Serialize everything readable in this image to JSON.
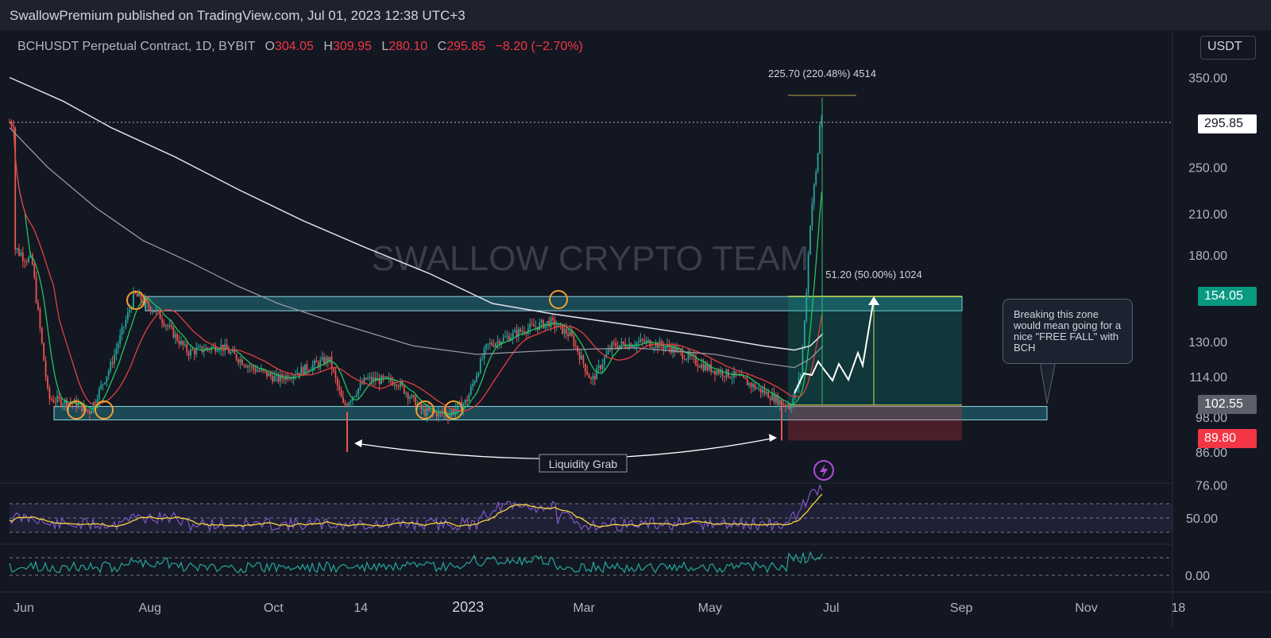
{
  "header": {
    "published": "SwallowPremium published on TradingView.com, Jul 01, 2023 12:38 UTC+3"
  },
  "symbol": {
    "name": "BCHUSDT Perpetual Contract, 1D, BYBIT",
    "o_label": "O",
    "o": "304.05",
    "h_label": "H",
    "h": "309.95",
    "l_label": "L",
    "l": "280.10",
    "c_label": "C",
    "c": "295.85",
    "change": "−8.20 (−2.70%)"
  },
  "currency": "USDT",
  "watermark": "SWALLOW CRYPTO TEAM",
  "annotations": {
    "measure_top": "225.70 (220.48%) 4514",
    "measure_mid": "51.20 (50.00%) 1024",
    "liquidity": "Liquidity Grab",
    "callout": "Breaking this zone would mean going for a nice \"FREE FALL\" with BCH"
  },
  "price_tags": {
    "last": "295.85",
    "target": "154.05",
    "entry": "102.55",
    "stop": "89.80"
  },
  "colors": {
    "background": "#131722",
    "up": "#26a69a",
    "down": "#ef5350",
    "zone": "#2aa6b8",
    "rsi": "#7e57c2",
    "rsi_ma": "#f5d63d",
    "osc": "#26a69a",
    "target_tag": "#089981",
    "stop_tag": "#f23645",
    "entry_tag": "#5d606b"
  },
  "chart_data": {
    "type": "candlestick",
    "scale": "log",
    "x_tick_labels": [
      "Jun",
      "Aug",
      "Oct",
      "14",
      "2023",
      "Mar",
      "May",
      "Jul",
      "Sep",
      "Nov",
      "18"
    ],
    "y_tick_labels": [
      "350.00",
      "250.00",
      "210.00",
      "180.00",
      "130.00",
      "114.00",
      "98.00",
      "86.00",
      "76.00"
    ],
    "y_ticks": [
      350,
      250,
      210,
      180,
      130,
      114,
      98,
      86,
      76
    ],
    "ylim": [
      72,
      400
    ],
    "rsi_tick_labels": [
      "50.00"
    ],
    "osc_tick_labels": [
      "0.00"
    ],
    "price_path": [
      [
        "2022-06-01",
        185
      ],
      [
        "2022-06-10",
        175
      ],
      [
        "2022-06-18",
        105
      ],
      [
        "2022-07-01",
        103
      ],
      [
        "2022-07-08",
        100
      ],
      [
        "2022-07-18",
        118
      ],
      [
        "2022-07-30",
        155
      ],
      [
        "2022-08-10",
        145
      ],
      [
        "2022-08-25",
        125
      ],
      [
        "2022-09-10",
        128
      ],
      [
        "2022-09-25",
        118
      ],
      [
        "2022-10-08",
        113
      ],
      [
        "2022-10-20",
        117
      ],
      [
        "2022-11-02",
        122
      ],
      [
        "2022-11-09",
        102
      ],
      [
        "2022-11-20",
        113
      ],
      [
        "2022-12-05",
        112
      ],
      [
        "2022-12-18",
        100
      ],
      [
        "2022-12-30",
        99
      ],
      [
        "2023-01-08",
        104
      ],
      [
        "2023-01-18",
        128
      ],
      [
        "2023-02-05",
        136
      ],
      [
        "2023-02-18",
        140
      ],
      [
        "2023-02-28",
        133
      ],
      [
        "2023-03-10",
        112
      ],
      [
        "2023-03-20",
        128
      ],
      [
        "2023-04-05",
        130
      ],
      [
        "2023-04-18",
        127
      ],
      [
        "2023-05-05",
        118
      ],
      [
        "2023-05-20",
        114
      ],
      [
        "2023-06-10",
        104
      ],
      [
        "2023-06-15",
        102
      ],
      [
        "2023-06-20",
        114
      ],
      [
        "2023-06-22",
        140
      ],
      [
        "2023-06-25",
        210
      ],
      [
        "2023-06-28",
        250
      ],
      [
        "2023-06-30",
        310
      ],
      [
        "2023-07-01",
        295.85
      ]
    ],
    "levels": {
      "resistance": [
        146,
        154
      ],
      "support": [
        97,
        102
      ],
      "target": 154.05,
      "entry": 102.55,
      "stop": 89.8
    },
    "ohlc_last": {
      "open": 304.05,
      "high": 309.95,
      "low": 280.1,
      "close": 295.85
    }
  }
}
